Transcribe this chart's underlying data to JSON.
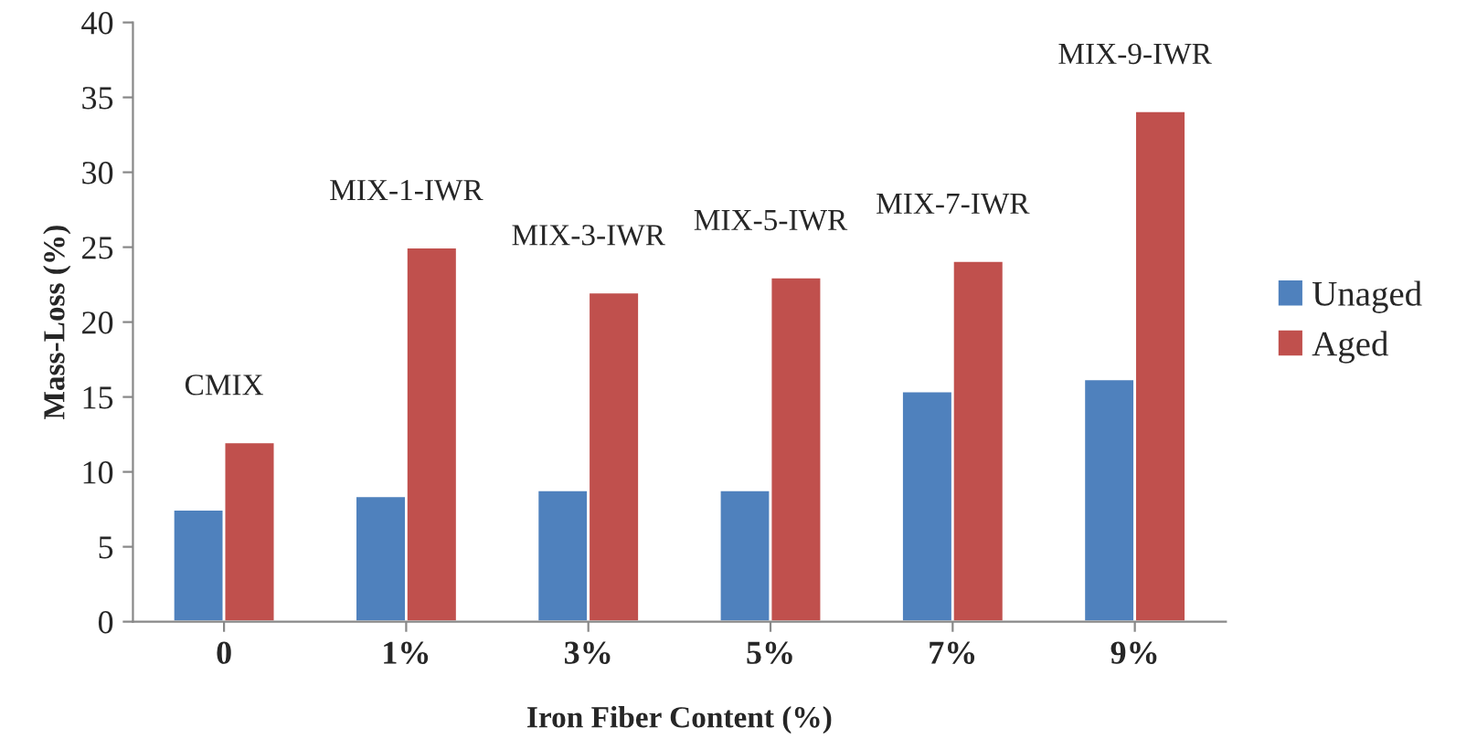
{
  "chart_data": {
    "type": "bar",
    "xlabel": "Iron Fiber Content (%)",
    "ylabel": "Mass-Loss (%)",
    "categories": [
      "0",
      "1%",
      "3%",
      "5%",
      "7%",
      "9%"
    ],
    "series": [
      {
        "name": "Unaged",
        "color": "#4f81bd",
        "values": [
          7.5,
          8.4,
          8.8,
          8.8,
          15.4,
          16.2
        ]
      },
      {
        "name": "Aged",
        "color": "#c0504d",
        "values": [
          12.0,
          25.0,
          22.0,
          23.0,
          24.1,
          34.1
        ]
      }
    ],
    "ylim": [
      0,
      40
    ],
    "yticks": [
      0,
      5,
      10,
      15,
      20,
      25,
      30,
      35,
      40
    ],
    "grid": false,
    "legend": "right",
    "annotations": [
      {
        "text": "CMIX",
        "x": "0",
        "y": 12.0
      },
      {
        "text": "MIX-1-IWR",
        "x": "1%",
        "y": 25.0
      },
      {
        "text": "MIX-3-IWR",
        "x": "3%",
        "y": 22.0
      },
      {
        "text": "MIX-5-IWR",
        "x": "5%",
        "y": 23.0
      },
      {
        "text": "MIX-7-IWR",
        "x": "7%",
        "y": 24.1
      },
      {
        "text": "MIX-9-IWR",
        "x": "9%",
        "y": 34.1
      }
    ]
  }
}
